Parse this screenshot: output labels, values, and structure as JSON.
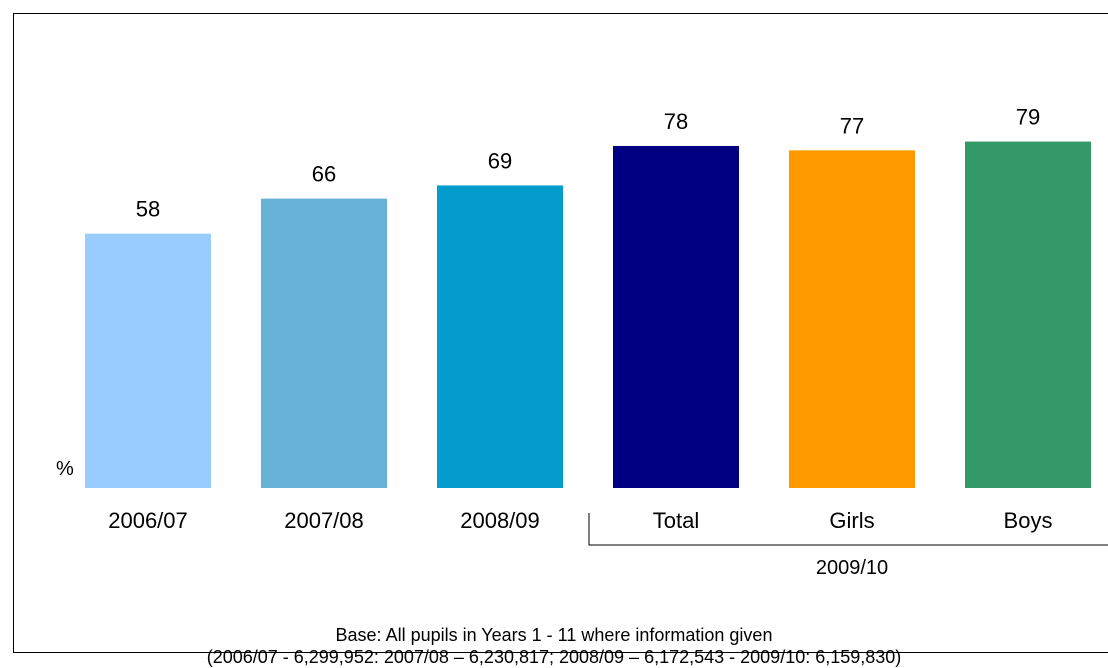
{
  "chart_data": {
    "type": "bar",
    "categories": [
      "2006/07",
      "2007/08",
      "2008/09",
      "Total",
      "Girls",
      "Boys"
    ],
    "values": [
      58,
      66,
      69,
      78,
      77,
      79
    ],
    "colors": [
      "#99ccff",
      "#66b2d9",
      "#049ccc",
      "#000080",
      "#ff9900",
      "#339966"
    ],
    "value_labels": [
      "58",
      "66",
      "69",
      "78",
      "77",
      "79"
    ],
    "group_label": "2009/10",
    "group_categories": [
      "Total",
      "Girls",
      "Boys"
    ],
    "unit_label": "%",
    "ylim": [
      0,
      100
    ],
    "grid": false,
    "legend": "none"
  },
  "footnote": {
    "line1": "Base: All pupils in Years 1 - 11 where information given",
    "line2": "(2006/07 - 6,299,952: 2007/08 – 6,230,817; 2008/09 – 6,172,543 - 2009/10: 6,159,830)"
  }
}
